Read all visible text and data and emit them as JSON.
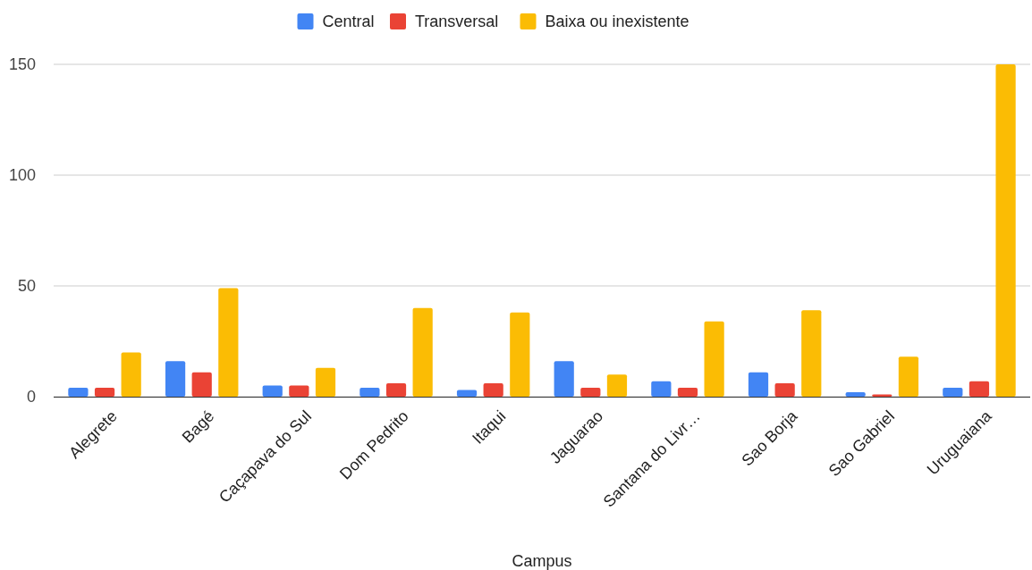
{
  "chart_data": {
    "type": "bar",
    "xlabel": "Campus",
    "categories": [
      "Alegrete",
      "Bagé",
      "Caçapava do Sul",
      "Dom Pedrito",
      "Itaqui",
      "Jaguarao",
      "Santana do Livr…",
      "Sao Borja",
      "Sao Gabriel",
      "Uruguaiana"
    ],
    "series": [
      {
        "name": "Central",
        "color": "#4285f4",
        "values": [
          4,
          16,
          5,
          4,
          3,
          16,
          7,
          11,
          2,
          4
        ]
      },
      {
        "name": "Transversal",
        "color": "#ea4335",
        "values": [
          4,
          11,
          5,
          6,
          6,
          4,
          4,
          6,
          1,
          7
        ]
      },
      {
        "name": "Baixa ou inexistente",
        "color": "#fbbc04",
        "values": [
          20,
          49,
          13,
          40,
          38,
          10,
          34,
          39,
          18,
          150
        ]
      }
    ],
    "ylim": [
      0,
      150
    ],
    "yticks": [
      0,
      50,
      100,
      150
    ],
    "grid": "y",
    "legend": "top"
  }
}
